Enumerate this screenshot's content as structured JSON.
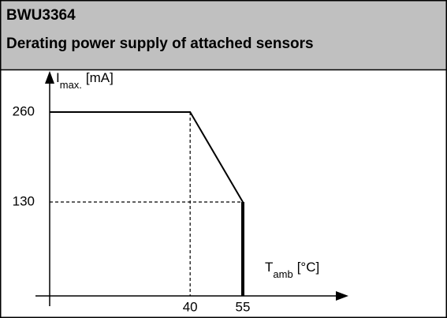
{
  "chart_data": {
    "type": "line",
    "title": "BWU3364",
    "subtitle": "Derating power supply of attached sensors",
    "y_label": {
      "symbol": "I",
      "sub": "max.",
      "unit": "[mA]"
    },
    "x_label": {
      "symbol": "T",
      "sub": "amb",
      "unit": "[°C]"
    },
    "x": [
      0,
      40,
      55,
      55
    ],
    "series": [
      {
        "color": "#000000",
        "values": [
          260,
          260,
          130,
          0
        ]
      }
    ],
    "xlim": [
      0,
      55
    ],
    "xticks": [
      40,
      55
    ],
    "ylim": [
      0,
      260
    ],
    "yticks": [
      130,
      260
    ],
    "guides": true
  }
}
